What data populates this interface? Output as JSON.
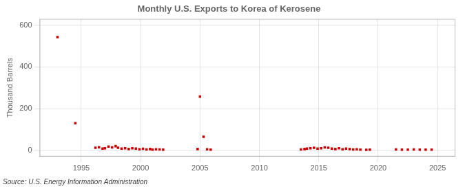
{
  "chart_data": {
    "type": "scatter",
    "title": "Monthly U.S. Exports to Korea of Kerosene",
    "ylabel": "Thousand Barrels",
    "annotations": [
      "Source: U.S. Energy Information Administration"
    ],
    "color": "#cc0000",
    "marker": "square",
    "grid": true,
    "xlim": [
      1991.5,
      2026.5
    ],
    "ylim": [
      -30,
      630
    ],
    "xticks": [
      1995,
      2000,
      2005,
      2010,
      2015,
      2020,
      2025
    ],
    "yticks": [
      0,
      200,
      400,
      600
    ],
    "x": [
      1993.0,
      1994.5,
      1996.2,
      1996.5,
      1996.8,
      1997.0,
      1997.3,
      1997.6,
      1997.9,
      1998.1,
      1998.4,
      1998.7,
      1999.0,
      1999.3,
      1999.6,
      1999.9,
      2000.2,
      2000.5,
      2000.8,
      2001.0,
      2001.3,
      2001.6,
      2001.9,
      2004.8,
      2005.0,
      2005.3,
      2005.6,
      2005.9,
      2013.5,
      2013.8,
      2014.0,
      2014.3,
      2014.6,
      2014.9,
      2015.2,
      2015.5,
      2015.8,
      2016.1,
      2016.4,
      2016.7,
      2017.0,
      2017.3,
      2017.6,
      2017.9,
      2018.2,
      2018.5,
      2019.0,
      2019.3,
      2021.5,
      2022.0,
      2022.5,
      2023.0,
      2023.5,
      2024.0,
      2024.5
    ],
    "values": [
      543,
      130,
      12,
      15,
      8,
      10,
      18,
      14,
      20,
      12,
      8,
      10,
      6,
      10,
      8,
      5,
      7,
      4,
      6,
      3,
      5,
      4,
      3,
      6,
      258,
      65,
      5,
      3,
      4,
      6,
      8,
      10,
      12,
      8,
      10,
      14,
      12,
      8,
      6,
      10,
      5,
      8,
      6,
      4,
      5,
      3,
      2,
      3,
      4,
      3,
      3,
      4,
      3,
      3,
      3
    ]
  }
}
